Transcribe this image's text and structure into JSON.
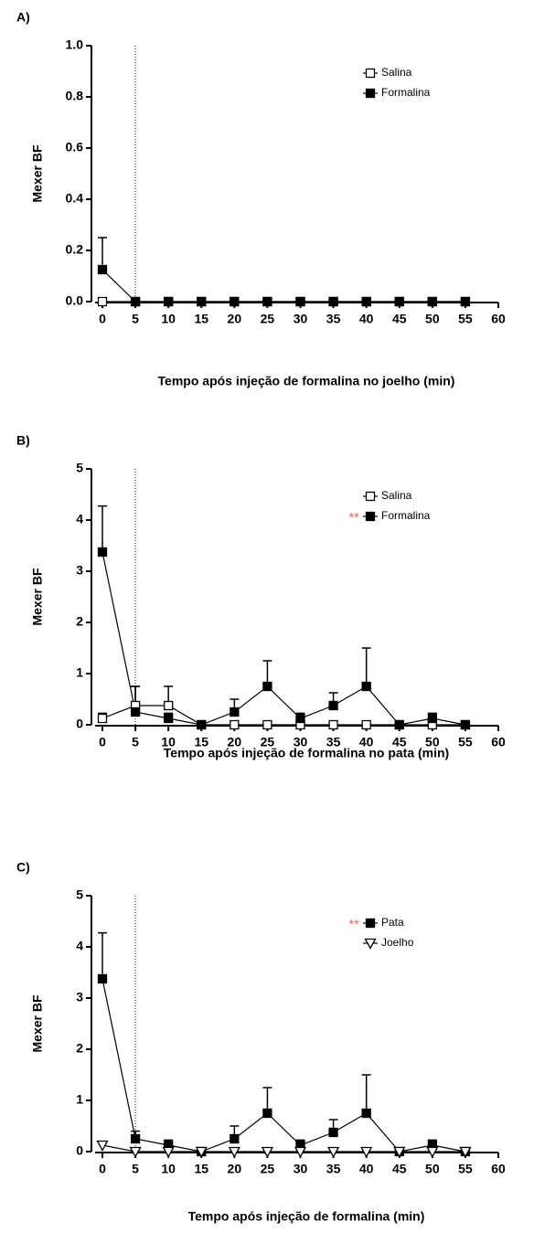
{
  "chart_data": [
    {
      "type": "line",
      "panel_label": "A)",
      "xlabel": "Tempo após injeção de formalina no joelho (min)",
      "ylabel": "Mexer BF",
      "x": [
        0,
        5,
        10,
        15,
        20,
        25,
        30,
        35,
        40,
        45,
        50,
        55
      ],
      "xlim": [
        0,
        60
      ],
      "xticks": [
        0,
        5,
        10,
        15,
        20,
        25,
        30,
        35,
        40,
        45,
        50,
        55,
        60
      ],
      "ylim": [
        0,
        1
      ],
      "yticks": [
        {
          "value": 0,
          "label": "0.0"
        },
        0.2,
        0.4,
        0.6,
        0.8,
        {
          "value": 1,
          "label": "1.0"
        }
      ],
      "reference_x": 5,
      "legend": "upper right",
      "series": [
        {
          "name": "Salina",
          "color": "#000000",
          "marker": "square-open",
          "values": [
            0,
            0,
            0,
            0,
            0,
            0,
            0,
            0,
            0,
            0,
            0,
            0
          ],
          "errors": [
            0,
            0,
            0,
            0,
            0,
            0,
            0,
            0,
            0,
            0,
            0,
            0
          ]
        },
        {
          "name": "Formalina",
          "color": "#000000",
          "marker": "square",
          "values": [
            0.125,
            0,
            0,
            0,
            0,
            0,
            0,
            0,
            0,
            0,
            0,
            0
          ],
          "errors": [
            0.125,
            0,
            0,
            0,
            0,
            0,
            0,
            0,
            0,
            0,
            0,
            0
          ]
        }
      ]
    },
    {
      "type": "line",
      "panel_label": "B)",
      "xlabel": "Tempo após injeção de formalina no pata (min)",
      "ylabel": "Mexer BF",
      "x": [
        0,
        5,
        10,
        15,
        20,
        25,
        30,
        35,
        40,
        45,
        50,
        55
      ],
      "xlim": [
        0,
        60
      ],
      "xticks": [
        0,
        5,
        10,
        15,
        20,
        25,
        30,
        35,
        40,
        45,
        50,
        55,
        60
      ],
      "ylim": [
        0,
        5
      ],
      "yticks": [
        0,
        1,
        2,
        3,
        4,
        5
      ],
      "reference_x": 5,
      "legend": "upper right",
      "series": [
        {
          "name": "Salina",
          "color": "#000000",
          "marker": "square-open",
          "values": [
            0.125,
            0.375,
            0.375,
            0,
            0,
            0,
            0,
            0,
            0,
            0,
            0,
            0
          ],
          "errors": [
            0.1,
            0.375,
            0.375,
            0,
            0,
            0,
            0,
            0,
            0,
            0,
            0.1,
            0
          ]
        },
        {
          "name": "Formalina",
          "color": "#000000",
          "marker": "square",
          "prefix": "**",
          "prefix_color": "#e8686a",
          "values": [
            3.375,
            0.25,
            0.125,
            0,
            0.25,
            0.75,
            0.125,
            0.375,
            0.75,
            0,
            0.125,
            0
          ],
          "errors": [
            0.9,
            0.5,
            0.1,
            0,
            0.25,
            0.5,
            0.1,
            0.25,
            0.75,
            0,
            0.1,
            0
          ]
        }
      ]
    },
    {
      "type": "line",
      "panel_label": "C)",
      "xlabel": "Tempo após injeção de formalina (min)",
      "ylabel": "Mexer BF",
      "x": [
        0,
        5,
        10,
        15,
        20,
        25,
        30,
        35,
        40,
        45,
        50,
        55
      ],
      "xlim": [
        0,
        60
      ],
      "xticks": [
        0,
        5,
        10,
        15,
        20,
        25,
        30,
        35,
        40,
        45,
        50,
        55,
        60
      ],
      "ylim": [
        0,
        5
      ],
      "yticks": [
        0,
        1,
        2,
        3,
        4,
        5
      ],
      "reference_x": 5,
      "legend": "upper right",
      "series": [
        {
          "name": "Pata",
          "color": "#000000",
          "marker": "square",
          "prefix": "**",
          "prefix_color": "#e8686a",
          "values": [
            3.375,
            0.25,
            0.125,
            0,
            0.25,
            0.75,
            0.125,
            0.375,
            0.75,
            0,
            0.125,
            0
          ],
          "errors": [
            0.9,
            0.15,
            0.1,
            0,
            0.25,
            0.5,
            0.1,
            0.25,
            0.75,
            0,
            0.1,
            0
          ]
        },
        {
          "name": "Joelho",
          "color": "#000000",
          "marker": "triangle-open",
          "values": [
            0.125,
            0,
            0,
            0,
            0,
            0,
            0,
            0,
            0,
            0,
            0,
            0
          ],
          "errors": [
            0.05,
            0,
            0,
            0,
            0,
            0,
            0,
            0,
            0,
            0,
            0,
            0
          ]
        }
      ]
    }
  ]
}
